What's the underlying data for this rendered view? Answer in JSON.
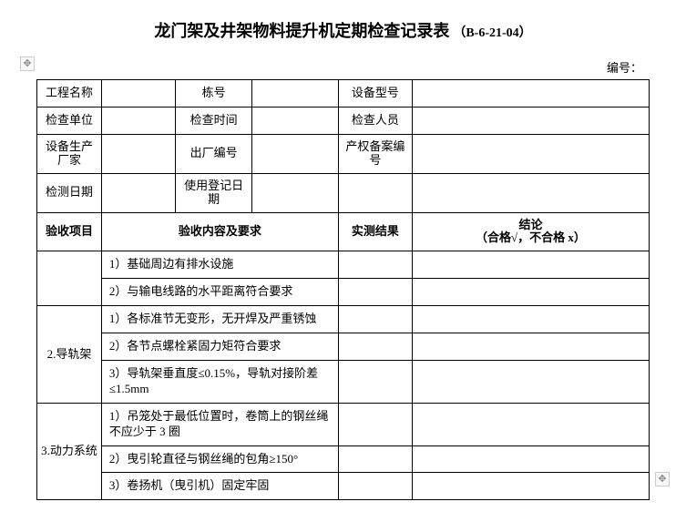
{
  "title": "龙门架及井架物料提升机定期检查记录表",
  "titleCode": "（B-6-21-04）",
  "serialLabel": "编号：",
  "header": {
    "r0": {
      "projectName": "工程名称",
      "buildingNo": "栋号",
      "equipModel": "设备型号"
    },
    "r1": {
      "inspectUnit": "检查单位",
      "inspectTime": "检查时间",
      "inspector": "检查人员"
    },
    "r2": {
      "manufacturer": "设备生产厂家",
      "factoryNo": "出厂编号",
      "filingNo": "产权备案编号"
    },
    "r3": {
      "testDate": "检测日期",
      "useRegDate": "使用登记日期"
    }
  },
  "colHead": {
    "item": "验收项目",
    "content": "验收内容及要求",
    "result": "实测结果",
    "conclusion": "结论\n（合格√，不合格 x）"
  },
  "sections": {
    "s1": {
      "rows": [
        "1）基础周边有排水设施",
        "2）与输电线路的水平距离符合要求"
      ]
    },
    "s2": {
      "name": "2.导轨架",
      "rows": [
        "1）各标准节无变形，无开焊及严重锈蚀",
        "2）各节点螺栓紧固力矩符合要求",
        "3）导轨架垂直度≤0.15%，导轨对接阶差≤1.5mm"
      ]
    },
    "s3": {
      "name": "3.动力系统",
      "rows": [
        "1）吊笼处于最低位置时，卷筒上的钢丝绳不应少于 3 圈",
        "2）曳引轮直径与钢丝绳的包角≥150°",
        "3）卷扬机（曳引机）固定牢固"
      ]
    }
  },
  "colors": {
    "border": "#000000",
    "bg": "#ffffff",
    "text": "#000000",
    "handleBorder": "#cccccc",
    "handleBg": "#f8f8f8"
  }
}
